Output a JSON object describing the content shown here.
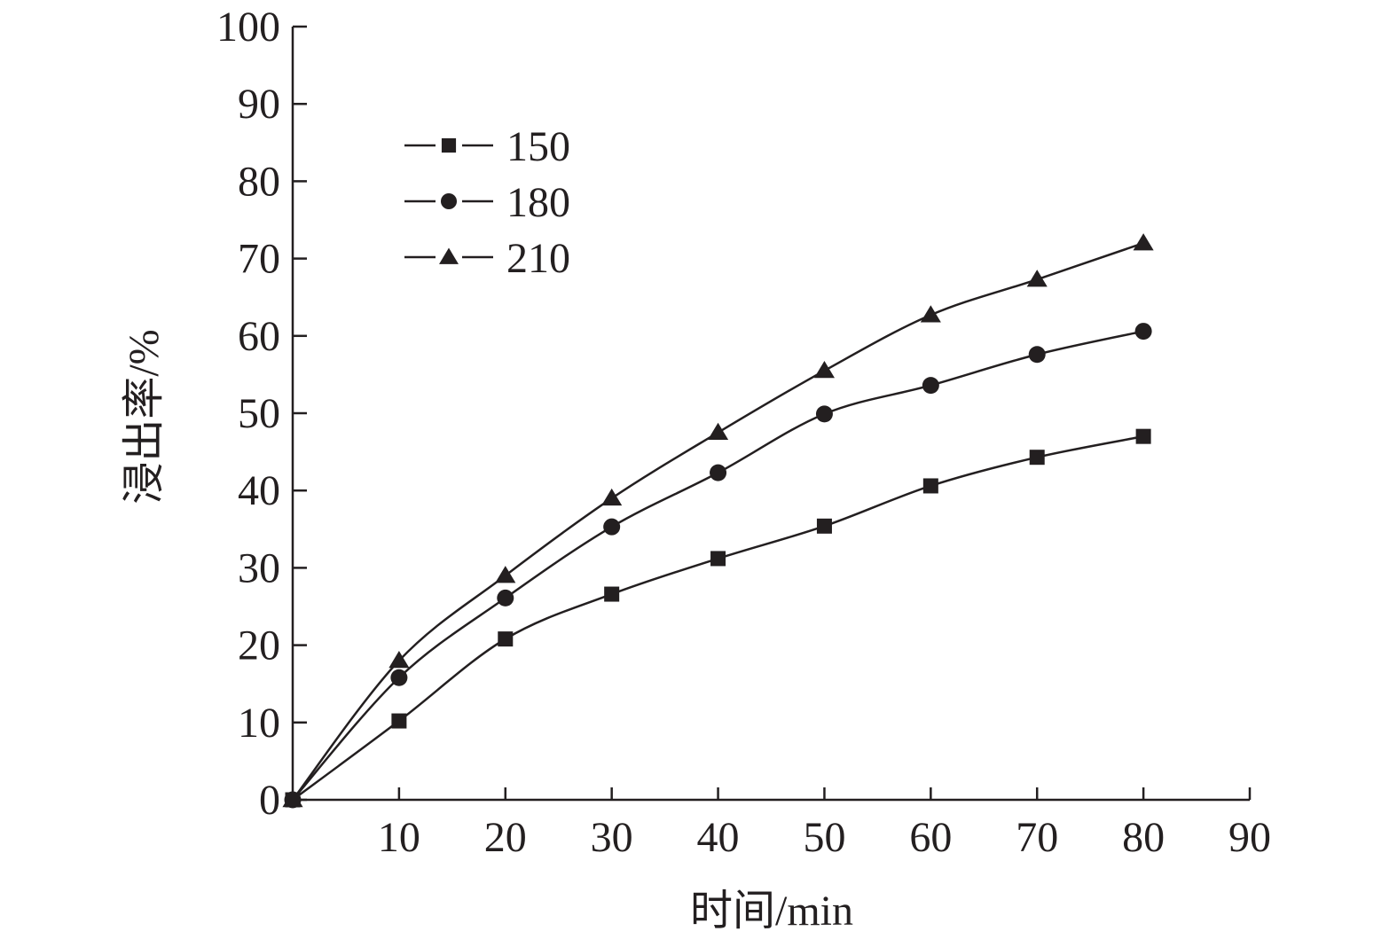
{
  "chart_data": {
    "type": "line",
    "xlabel": "时间/min",
    "ylabel": "浸出率/%",
    "xlim": [
      0,
      90
    ],
    "ylim": [
      0,
      100
    ],
    "x_ticks": [
      "10",
      "20",
      "30",
      "40",
      "50",
      "60",
      "70",
      "80",
      "90"
    ],
    "y_ticks": [
      "0",
      "10",
      "20",
      "30",
      "40",
      "50",
      "60",
      "70",
      "80",
      "90",
      "100"
    ],
    "grid": false,
    "legend_position": "top-left",
    "x": [
      0,
      10,
      20,
      30,
      40,
      50,
      60,
      70,
      80
    ],
    "series": [
      {
        "name": "150",
        "marker": "square",
        "values": [
          0,
          10.2,
          20.8,
          26.6,
          31.2,
          35.4,
          40.6,
          44.3,
          47.0
        ]
      },
      {
        "name": "180",
        "marker": "circle",
        "values": [
          0,
          15.8,
          26.1,
          35.3,
          42.3,
          49.9,
          53.6,
          57.6,
          60.6
        ]
      },
      {
        "name": "210",
        "marker": "triangle",
        "values": [
          0,
          18.0,
          29.0,
          39.0,
          47.5,
          55.5,
          62.7,
          67.3,
          72.0
        ]
      }
    ],
    "colors": {
      "line": "#231f20",
      "marker": "#231f20"
    }
  }
}
